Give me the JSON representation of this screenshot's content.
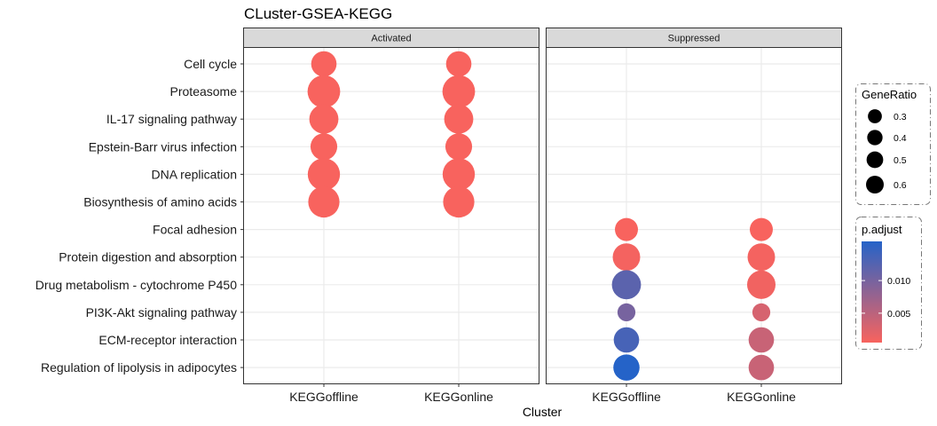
{
  "chart_data": {
    "type": "scatter",
    "title": "CLuster-GSEA-KEGG",
    "xlabel": "Cluster",
    "ylabel": "",
    "panels": [
      "Activated",
      "Suppressed"
    ],
    "x_categories": [
      "KEGGoffline",
      "KEGGonline"
    ],
    "y_categories": [
      "Cell cycle",
      "Proteasome",
      "IL-17 signaling pathway",
      "Epstein-Barr virus infection",
      "DNA replication",
      "Biosynthesis of amino acids",
      "Focal adhesion",
      "Protein digestion and absorption",
      "Drug metabolism - cytochrome P450",
      "PI3K-Akt signaling pathway",
      "ECM-receptor interaction",
      "Regulation of lipolysis in adipocytes"
    ],
    "points": [
      {
        "panel": "Activated",
        "x": "KEGGoffline",
        "y": "Cell cycle",
        "GeneRatio": 0.3,
        "p_adjust": 0.0005
      },
      {
        "panel": "Activated",
        "x": "KEGGonline",
        "y": "Cell cycle",
        "GeneRatio": 0.3,
        "p_adjust": 0.0005
      },
      {
        "panel": "Activated",
        "x": "KEGGoffline",
        "y": "Proteasome",
        "GeneRatio": 0.62,
        "p_adjust": 0.0005
      },
      {
        "panel": "Activated",
        "x": "KEGGonline",
        "y": "Proteasome",
        "GeneRatio": 0.62,
        "p_adjust": 0.0005
      },
      {
        "panel": "Activated",
        "x": "KEGGoffline",
        "y": "IL-17 signaling pathway",
        "GeneRatio": 0.45,
        "p_adjust": 0.0005
      },
      {
        "panel": "Activated",
        "x": "KEGGonline",
        "y": "IL-17 signaling pathway",
        "GeneRatio": 0.45,
        "p_adjust": 0.0005
      },
      {
        "panel": "Activated",
        "x": "KEGGoffline",
        "y": "Epstein-Barr virus infection",
        "GeneRatio": 0.35,
        "p_adjust": 0.0005
      },
      {
        "panel": "Activated",
        "x": "KEGGonline",
        "y": "Epstein-Barr virus infection",
        "GeneRatio": 0.35,
        "p_adjust": 0.0005
      },
      {
        "panel": "Activated",
        "x": "KEGGoffline",
        "y": "DNA replication",
        "GeneRatio": 0.6,
        "p_adjust": 0.0005
      },
      {
        "panel": "Activated",
        "x": "KEGGonline",
        "y": "DNA replication",
        "GeneRatio": 0.6,
        "p_adjust": 0.0005
      },
      {
        "panel": "Activated",
        "x": "KEGGoffline",
        "y": "Biosynthesis of amino acids",
        "GeneRatio": 0.55,
        "p_adjust": 0.0005
      },
      {
        "panel": "Activated",
        "x": "KEGGonline",
        "y": "Biosynthesis of amino acids",
        "GeneRatio": 0.55,
        "p_adjust": 0.0005
      },
      {
        "panel": "Suppressed",
        "x": "KEGGoffline",
        "y": "Focal adhesion",
        "GeneRatio": 0.22,
        "p_adjust": 0.0005
      },
      {
        "panel": "Suppressed",
        "x": "KEGGonline",
        "y": "Focal adhesion",
        "GeneRatio": 0.22,
        "p_adjust": 0.0005
      },
      {
        "panel": "Suppressed",
        "x": "KEGGoffline",
        "y": "Protein digestion and absorption",
        "GeneRatio": 0.38,
        "p_adjust": 0.0008
      },
      {
        "panel": "Suppressed",
        "x": "KEGGonline",
        "y": "Protein digestion and absorption",
        "GeneRatio": 0.38,
        "p_adjust": 0.0008
      },
      {
        "panel": "Suppressed",
        "x": "KEGGoffline",
        "y": "Drug metabolism - cytochrome P450",
        "GeneRatio": 0.45,
        "p_adjust": 0.012
      },
      {
        "panel": "Suppressed",
        "x": "KEGGonline",
        "y": "Drug metabolism - cytochrome P450",
        "GeneRatio": 0.42,
        "p_adjust": 0.001
      },
      {
        "panel": "Suppressed",
        "x": "KEGGoffline",
        "y": "PI3K-Akt signaling pathway",
        "GeneRatio": 0.09,
        "p_adjust": 0.01
      },
      {
        "panel": "Suppressed",
        "x": "KEGGonline",
        "y": "PI3K-Akt signaling pathway",
        "GeneRatio": 0.09,
        "p_adjust": 0.003
      },
      {
        "panel": "Suppressed",
        "x": "KEGGoffline",
        "y": "ECM-receptor interaction",
        "GeneRatio": 0.3,
        "p_adjust": 0.0135
      },
      {
        "panel": "Suppressed",
        "x": "KEGGonline",
        "y": "ECM-receptor interaction",
        "GeneRatio": 0.3,
        "p_adjust": 0.004
      },
      {
        "panel": "Suppressed",
        "x": "KEGGoffline",
        "y": "Regulation of lipolysis in adipocytes",
        "GeneRatio": 0.33,
        "p_adjust": 0.016
      },
      {
        "panel": "Suppressed",
        "x": "KEGGonline",
        "y": "Regulation of lipolysis in adipocytes",
        "GeneRatio": 0.3,
        "p_adjust": 0.004
      }
    ],
    "size_legend": {
      "title": "GeneRatio",
      "breaks": [
        0.3,
        0.4,
        0.5,
        0.6
      ],
      "labels": [
        "0.3",
        "0.4",
        "0.5",
        "0.6"
      ]
    },
    "color_legend": {
      "title": "p.adjust",
      "min": 0.0005,
      "max": 0.016,
      "breaks": [
        0.005,
        0.01
      ],
      "labels": [
        "0.005",
        "0.010"
      ],
      "low_color": "#F8635E",
      "high_color": "#2563C8"
    },
    "grid": true,
    "legend_position": "right"
  }
}
